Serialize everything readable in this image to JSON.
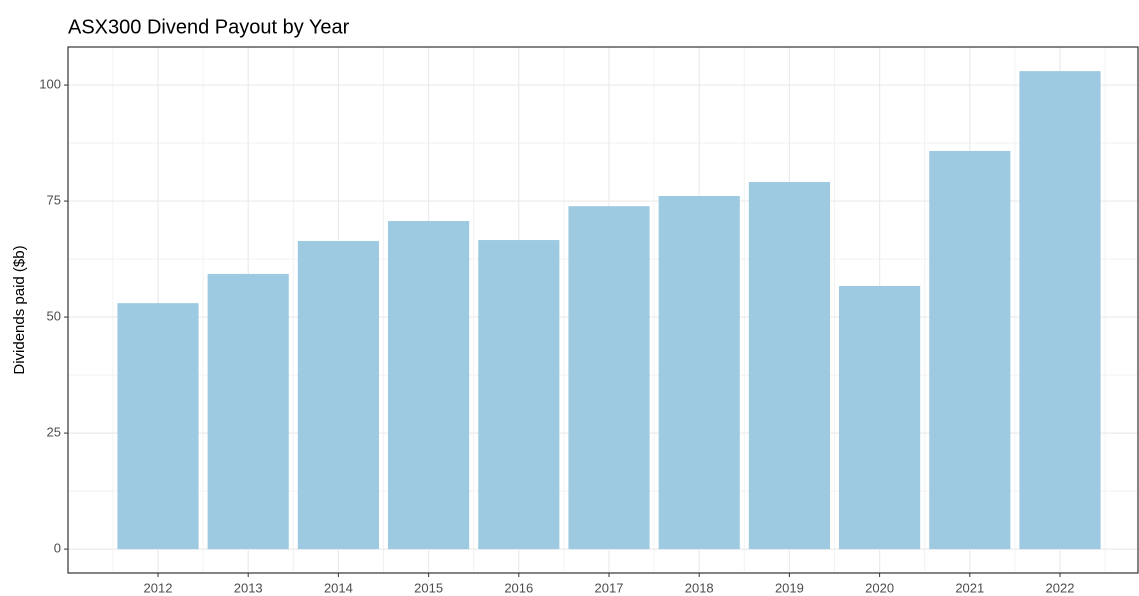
{
  "chart_data": {
    "type": "bar",
    "title": "ASX300 Divend Payout by Year",
    "y_label": "Dividends paid ($b)",
    "categories": [
      "2012",
      "2013",
      "2014",
      "2015",
      "2016",
      "2017",
      "2018",
      "2019",
      "2020",
      "2021",
      "2022"
    ],
    "values": [
      53.0,
      59.3,
      66.4,
      70.7,
      66.6,
      73.9,
      76.1,
      79.1,
      56.7,
      85.8,
      103.0
    ],
    "color": "#9ecae1",
    "ylim": [
      -5.15,
      108.2
    ],
    "yticks": [
      0,
      25,
      50,
      75,
      100
    ],
    "grid": true
  }
}
